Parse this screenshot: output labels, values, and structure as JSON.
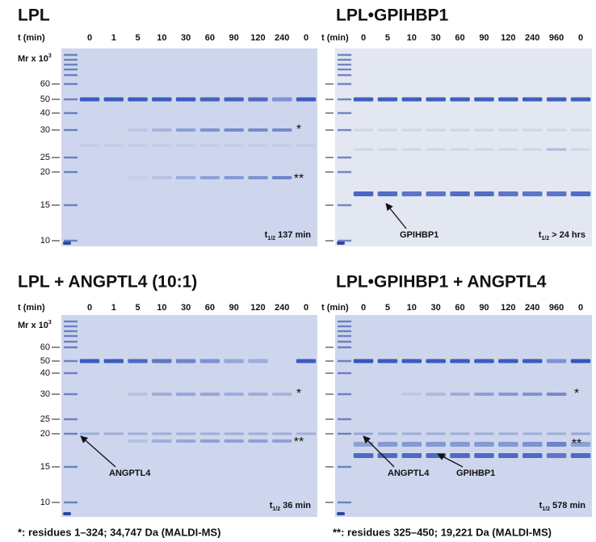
{
  "panels": [
    {
      "title": "LPL",
      "time_label": "t (min)",
      "times": [
        "0",
        "1",
        "5",
        "10",
        "30",
        "60",
        "90",
        "120",
        "240",
        "0"
      ],
      "mw_label": "Mr x 10",
      "mw_sup": "3",
      "mw_markers": [
        "60",
        "50",
        "40",
        "30",
        "25",
        "20",
        "15",
        "10"
      ],
      "stars": [
        "*",
        "**"
      ],
      "half_life": {
        "symbol": "t",
        "subscript": "1/2",
        "value": "137 min"
      },
      "arrows": []
    },
    {
      "title": "LPL•GPIHBP1",
      "time_label": "t (min)",
      "times": [
        "0",
        "5",
        "10",
        "30",
        "60",
        "90",
        "120",
        "240",
        "960",
        "0"
      ],
      "stars": [],
      "half_life": {
        "symbol": "t",
        "subscript": "1/2",
        "value": "> 24 hrs"
      },
      "arrows": [
        "GPIHBP1"
      ]
    },
    {
      "title": "LPL + ANGPTL4 (10:1)",
      "time_label": "t (min)",
      "times": [
        "0",
        "1",
        "5",
        "10",
        "30",
        "60",
        "90",
        "120",
        "240",
        "0"
      ],
      "mw_label": "Mr x 10",
      "mw_sup": "3",
      "mw_markers": [
        "60",
        "50",
        "40",
        "30",
        "25",
        "20",
        "15",
        "10"
      ],
      "stars": [
        "*",
        "**"
      ],
      "half_life": {
        "symbol": "t",
        "subscript": "1/2",
        "value": "36 min"
      },
      "arrows": [
        "ANGPTL4"
      ]
    },
    {
      "title": "LPL•GPIHBP1 + ANGPTL4",
      "time_label": "t (min)",
      "times": [
        "0",
        "5",
        "10",
        "30",
        "60",
        "90",
        "120",
        "240",
        "960",
        "0"
      ],
      "stars": [
        "*",
        "**"
      ],
      "half_life": {
        "symbol": "t",
        "subscript": "1/2",
        "value": "578 min"
      },
      "arrows": [
        "ANGPTL4",
        "GPIHBP1"
      ]
    }
  ],
  "footnotes": [
    "*:  residues 1–324; 34,747 Da (MALDI-MS)",
    "**:  residues 325–450; 19,221 Da (MALDI-MS)"
  ]
}
